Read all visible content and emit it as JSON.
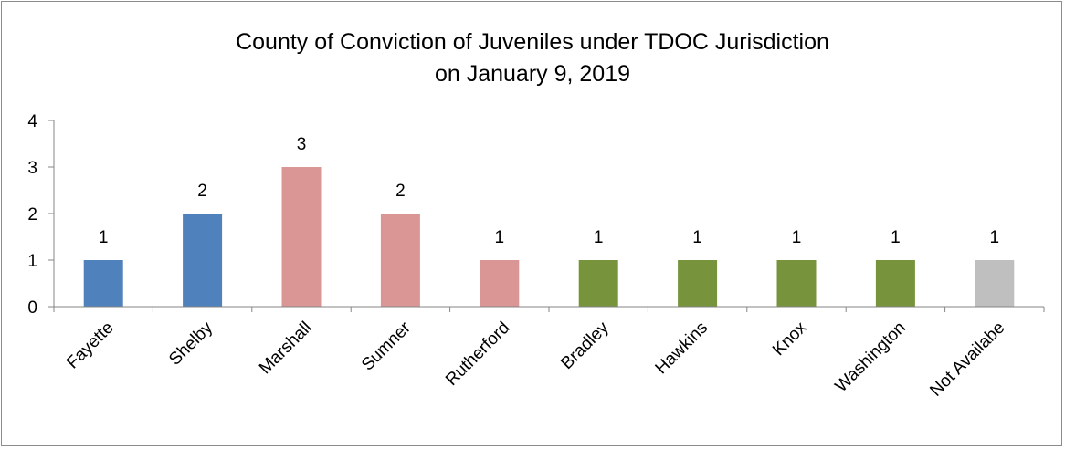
{
  "chart_data": {
    "type": "bar",
    "title_lines": [
      "County of Conviction of Juveniles under TDOC Jurisdiction",
      "on January 9, 2019"
    ],
    "categories": [
      "Fayette",
      "Shelby",
      "Marshall",
      "Sumner",
      "Rutherford",
      "Bradley",
      "Hawkins",
      "Knox",
      "Washington",
      "Not Availabe"
    ],
    "values": [
      1,
      2,
      3,
      2,
      1,
      1,
      1,
      1,
      1,
      1
    ],
    "data_labels": [
      "1",
      "2",
      "3",
      "2",
      "1",
      "1",
      "1",
      "1",
      "1",
      "1"
    ],
    "bar_colors": [
      "#4f81bd",
      "#4f81bd",
      "#d99694",
      "#d99694",
      "#d99694",
      "#77933c",
      "#77933c",
      "#77933c",
      "#77933c",
      "#bfbfbf"
    ],
    "y_ticks": [
      "0",
      "1",
      "2",
      "3",
      "4"
    ],
    "ylim": [
      0,
      4
    ],
    "xlabel": "",
    "ylabel": "",
    "grid": false,
    "legend": "none"
  }
}
